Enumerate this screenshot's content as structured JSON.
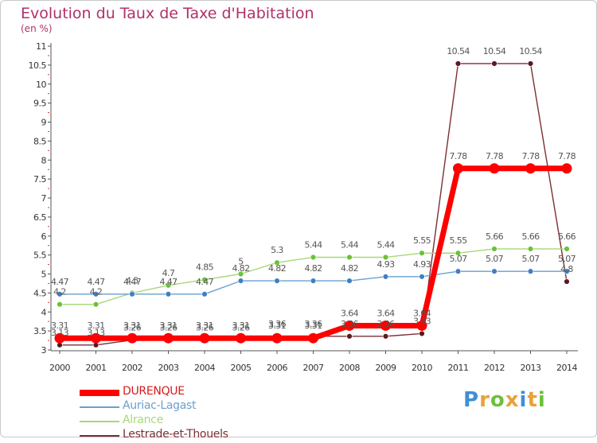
{
  "chart_data": {
    "type": "line",
    "title": "Evolution du Taux de Taxe d'Habitation",
    "unit_label": "(en %)",
    "x": [
      "2000",
      "2001",
      "2002",
      "2003",
      "2004",
      "2005",
      "2006",
      "2007",
      "2008",
      "2009",
      "2010",
      "2011",
      "2012",
      "2013",
      "2014"
    ],
    "ylim": [
      3,
      11
    ],
    "yticks": [
      "3",
      "3.5",
      "4",
      "4.5",
      "5",
      "5.5",
      "6",
      "6.5",
      "7",
      "7.5",
      "8",
      "8.5",
      "9",
      "9.5",
      "10",
      "10.5",
      "11"
    ],
    "grid": false,
    "series": [
      {
        "name": "DURENQUE",
        "color": "#ff0000",
        "marker_color": "#ff0000",
        "values": [
          3.31,
          3.31,
          3.31,
          3.31,
          3.31,
          3.31,
          3.31,
          3.31,
          3.64,
          3.64,
          3.64,
          7.78,
          7.78,
          7.78,
          7.78
        ],
        "labels": [
          "3.31",
          "3.31",
          "3.31",
          "3.31",
          "3.31",
          "3.31",
          "3.31",
          "3.31",
          "3.64",
          "3.64",
          "3.64",
          "7.78",
          "7.78",
          "7.78",
          "7.78"
        ]
      },
      {
        "name": "Auriac-Lagast",
        "color": "#6a9fcf",
        "marker_color": "#3f7fc4",
        "values": [
          4.47,
          4.47,
          4.47,
          4.47,
          4.47,
          4.82,
          4.82,
          4.82,
          4.82,
          4.93,
          4.93,
          5.07,
          5.07,
          5.07,
          5.07
        ],
        "labels": [
          "4.47",
          "4.47",
          "4.47",
          "4.47",
          "4.47",
          "4.82",
          "4.82",
          "4.82",
          "4.82",
          "4.93",
          "4.93",
          "5.07",
          "5.07",
          "5.07",
          "5.07"
        ]
      },
      {
        "name": "Alrance",
        "color": "#a6d876",
        "marker_color": "#6cc13a",
        "values": [
          4.2,
          4.2,
          4.5,
          4.7,
          4.85,
          5,
          5.3,
          5.44,
          5.44,
          5.44,
          5.55,
          5.55,
          5.66,
          5.66,
          5.66
        ],
        "labels": [
          "4.2",
          "4.2",
          "4.5",
          "4.7",
          "4.85",
          "5",
          "5.3",
          "5.44",
          "5.44",
          "5.44",
          "5.55",
          "5.55",
          "5.66",
          "5.66",
          "5.66"
        ]
      },
      {
        "name": "Lestrade-et-Thouels",
        "color": "#7b2f35",
        "marker_color": "#5a1a1e",
        "values": [
          3.13,
          3.13,
          3.26,
          3.26,
          3.26,
          3.26,
          3.36,
          3.36,
          3.36,
          3.36,
          3.43,
          10.54,
          10.54,
          10.54,
          4.8
        ],
        "labels": [
          "3.13",
          "3.13",
          "3.26",
          "3.26",
          "3.26",
          "3.26",
          "3.36",
          "3.36",
          "3.36",
          "3.36",
          "3.43",
          "10.54",
          "10.54",
          "10.54",
          "4.8"
        ]
      }
    ]
  },
  "logo": {
    "text": "Proxiti",
    "letter_colors": [
      "#3f8fd6",
      "#e8a23a",
      "#6cc13a",
      "#e8a23a",
      "#3f8fd6",
      "#e8a23a",
      "#6cc13a"
    ]
  }
}
